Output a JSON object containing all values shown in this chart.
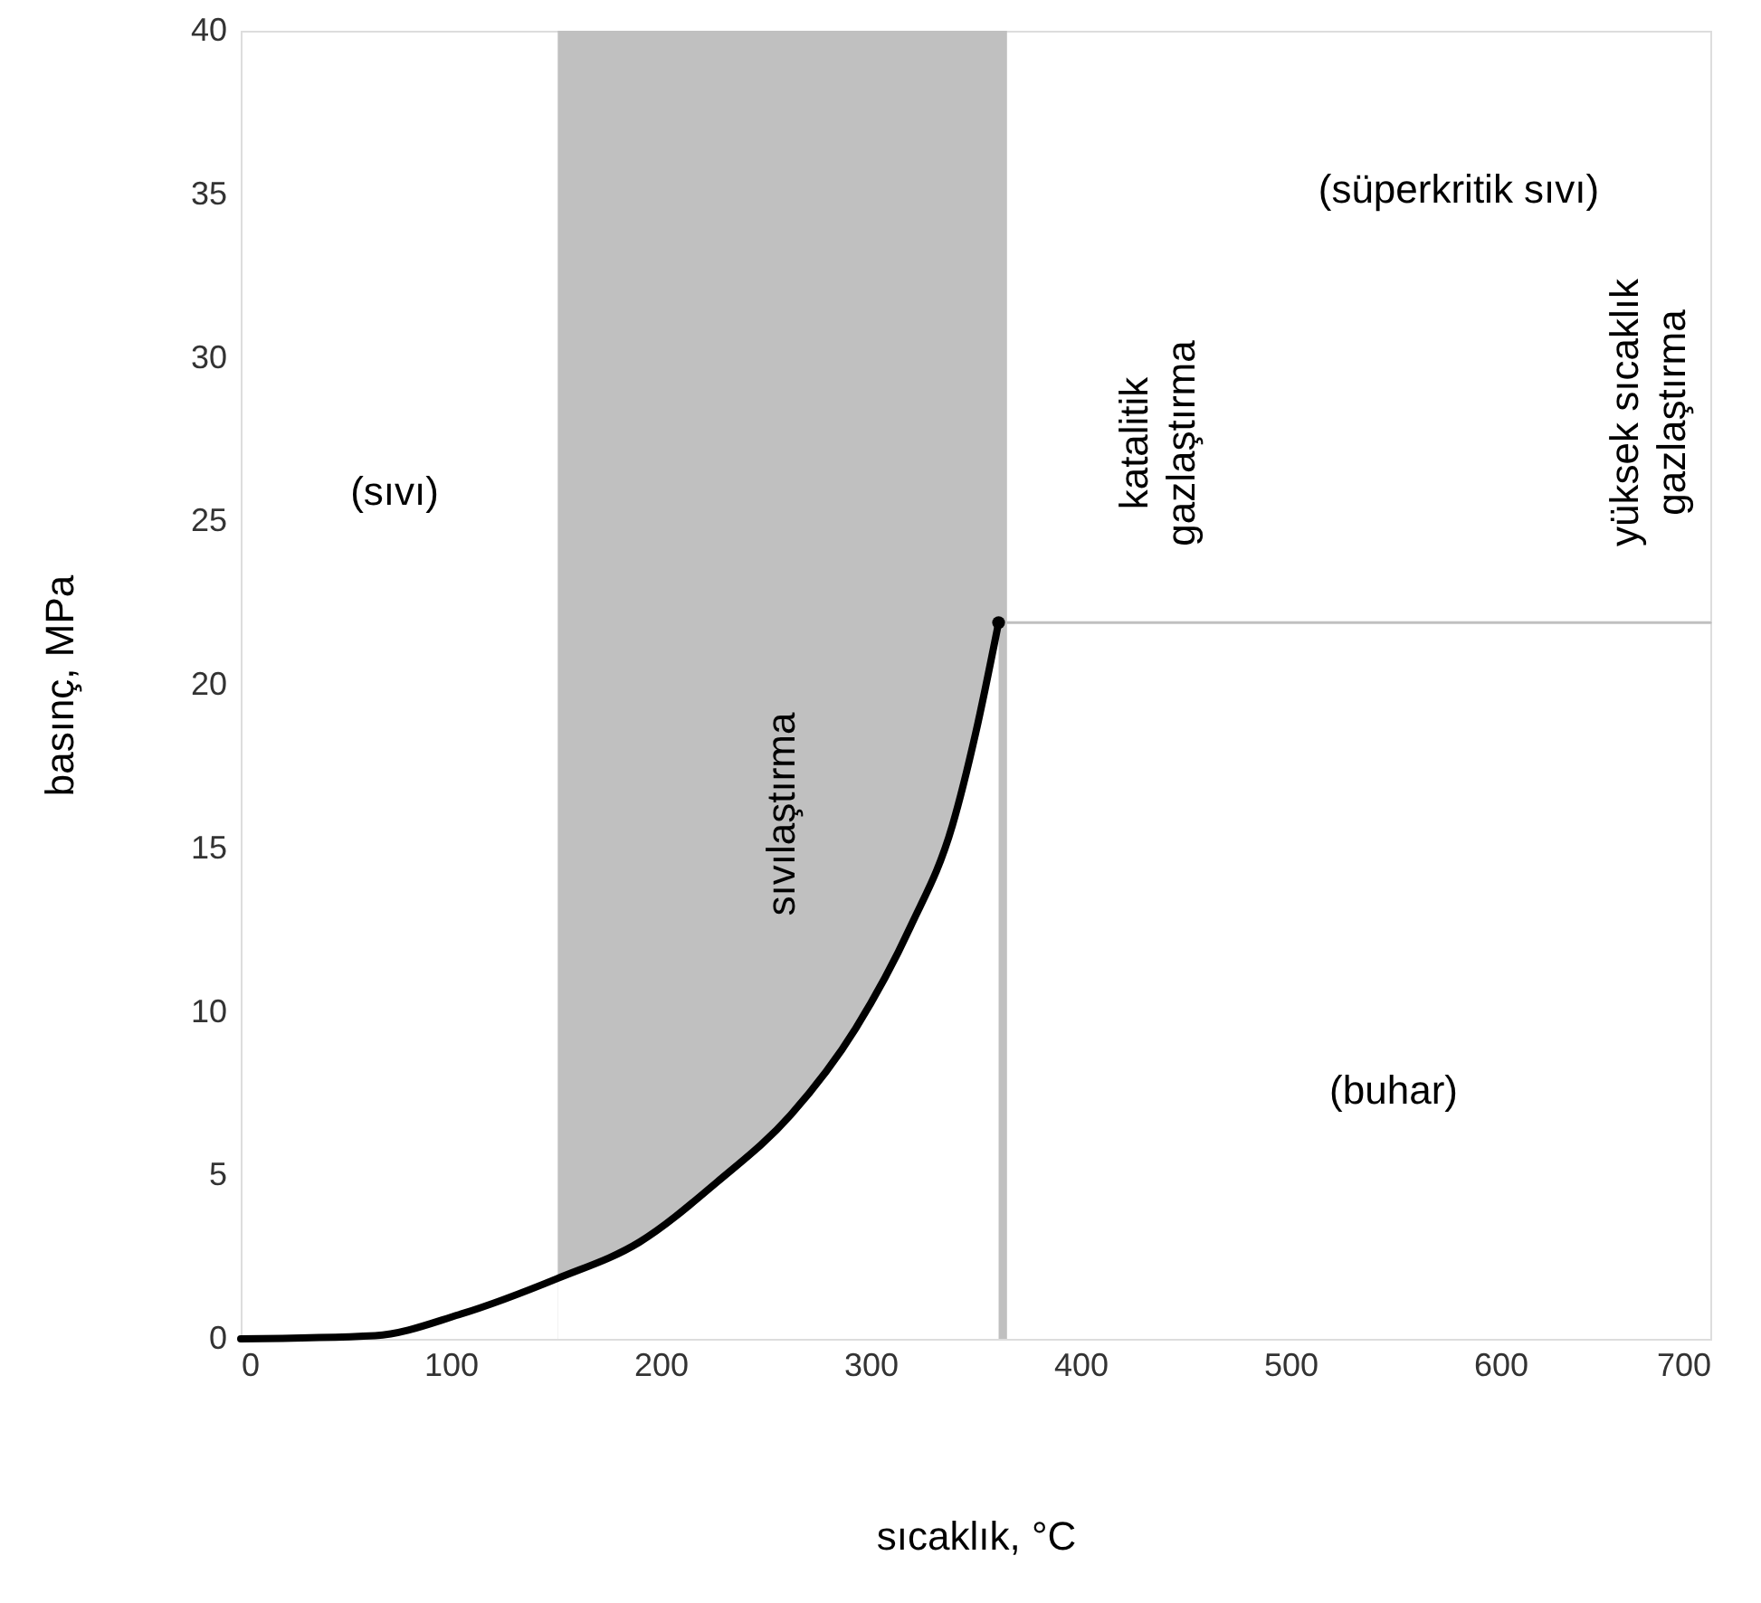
{
  "chart_data": {
    "type": "line",
    "xlabel": "sıcaklık, °C",
    "ylabel": "basınç, MPa",
    "xlim": [
      0,
      700
    ],
    "ylim": [
      0,
      40
    ],
    "xticks": [
      0,
      100,
      200,
      300,
      400,
      500,
      600,
      700
    ],
    "yticks": [
      0,
      5,
      10,
      15,
      20,
      25,
      30,
      35,
      40
    ],
    "grid": false,
    "bands": [
      {
        "axis": "x",
        "from": 151,
        "to": 365,
        "color": "#c0c0c0"
      }
    ],
    "series": [
      {
        "type": "area",
        "color": "#ffffff",
        "x": [
          151,
          190,
          227,
          262,
          293,
          319,
          339,
          350,
          361
        ],
        "values": [
          1.85,
          2.96,
          4.8,
          6.85,
          9.5,
          12.6,
          15.7,
          18.5,
          21.9
        ]
      },
      {
        "color": "#000000",
        "x": [
          0,
          64,
          104,
          151,
          190,
          227,
          262,
          293,
          319,
          339,
          350,
          361
        ],
        "values": [
          0,
          0.1,
          0.74,
          1.85,
          2.96,
          4.8,
          6.85,
          9.5,
          12.6,
          15.7,
          18.5,
          21.9
        ]
      },
      {
        "color": "#c0c0c0",
        "x": [
          361,
          700
        ],
        "values": [
          21.9,
          21.9
        ]
      },
      {
        "type": "scatter",
        "color": "#000000",
        "marker": "circle",
        "x": [
          361
        ],
        "values": [
          21.9
        ]
      }
    ],
    "annotations": [
      "(sıvı)",
      "sıvılaştırma",
      "katalitik\ngazlaştırma",
      "(süperkritik sıvı)",
      "yüksek sıcaklık\ngazlaştırma",
      "(buhar)"
    ]
  }
}
